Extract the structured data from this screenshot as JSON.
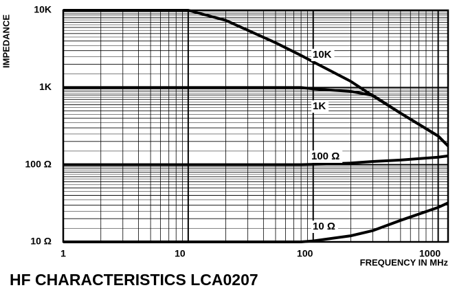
{
  "chart_data": {
    "type": "line",
    "title": "HF CHARACTERISTICS LCA0207",
    "y_label": "IMPEDANCE",
    "x_label": "FREQUENCY IN MHz",
    "log_x": true,
    "log_y": true,
    "grid": true,
    "x": [
      1,
      10,
      20,
      50,
      80,
      100,
      200,
      300,
      500,
      1000,
      1200
    ],
    "series": [
      {
        "name": "10K",
        "color": "#000000",
        "values": [
          10000,
          10000,
          7400,
          3800,
          2600,
          2150,
          1200,
          780,
          465,
          235,
          175
        ]
      },
      {
        "name": "1K",
        "color": "#000000",
        "values": [
          1000,
          1000,
          1000,
          1000,
          1000,
          960,
          890,
          790,
          465,
          235,
          175
        ]
      },
      {
        "name": "100 Ω",
        "color": "#000000",
        "values": [
          100,
          100,
          100,
          100,
          100,
          101,
          105,
          110,
          115,
          125,
          130
        ]
      },
      {
        "name": "10 Ω",
        "color": "#000000",
        "values": [
          10,
          10,
          10,
          10,
          10,
          10.3,
          12,
          14,
          19,
          28,
          32
        ]
      }
    ],
    "xlim": [
      1,
      1200
    ],
    "xticks": [
      1,
      10,
      100,
      1000
    ],
    "ylim": [
      10,
      10000
    ],
    "yticks": [
      {
        "value": 10,
        "label": "10 Ω"
      },
      {
        "value": 100,
        "label": "100 Ω"
      },
      {
        "value": 1000,
        "label": "1K"
      },
      {
        "value": 10000,
        "label": "10K"
      }
    ]
  }
}
